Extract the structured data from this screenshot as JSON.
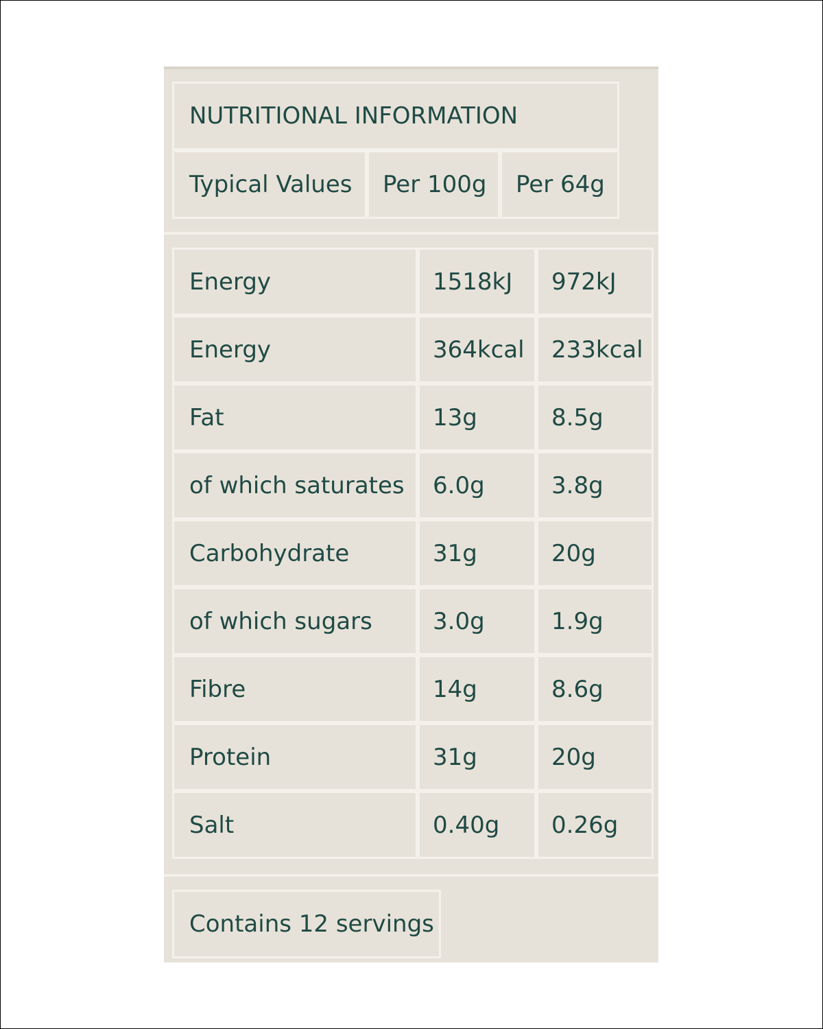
{
  "title": "NUTRITIONAL INFORMATION",
  "header": {
    "typical": "Typical Values",
    "per100": "Per 100g",
    "perServing": "Per 64g"
  },
  "rows": [
    {
      "label": "Energy",
      "per100": "1518kJ",
      "perServing": "972kJ"
    },
    {
      "label": "Energy",
      "per100": "364kcal",
      "perServing": "233kcal"
    },
    {
      "label": "Fat",
      "per100": "13g",
      "perServing": "8.5g"
    },
    {
      "label": "of which saturates",
      "per100": "6.0g",
      "perServing": "3.8g"
    },
    {
      "label": "Carbohydrate",
      "per100": "31g",
      "perServing": "20g"
    },
    {
      "label": "of which sugars",
      "per100": "3.0g",
      "perServing": "1.9g"
    },
    {
      "label": "Fibre",
      "per100": "14g",
      "perServing": "8.6g"
    },
    {
      "label": "Protein",
      "per100": "31g",
      "perServing": "20g"
    },
    {
      "label": "Salt",
      "per100": "0.40g",
      "perServing": "0.26g"
    }
  ],
  "footer": "Contains 12 servings",
  "colors": {
    "text": "#1f4a45",
    "background": "#e7e2d9",
    "border": "#f4f1eb"
  }
}
